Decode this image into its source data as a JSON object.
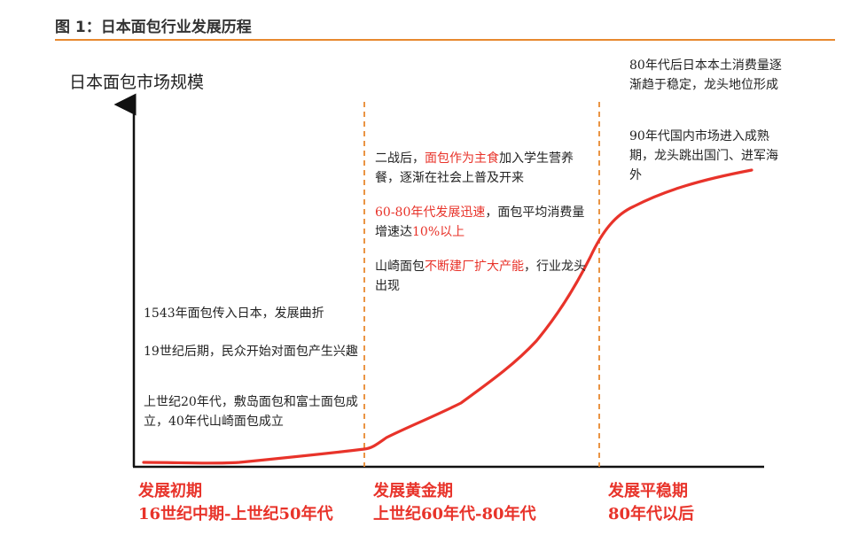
{
  "figure_title": "图 1：日本面包行业发展历程",
  "y_axis_label": "日本面包市场规模",
  "stages": [
    {
      "name": "发展初期",
      "period": "16世纪中期-上世纪50年代"
    },
    {
      "name": "发展黄金期",
      "period": "上世纪60年代-80年代"
    },
    {
      "name": "发展平稳期",
      "period": "80年代以后"
    }
  ],
  "early_notes": [
    "1543年面包传入日本，发展曲折",
    "19世纪后期，民众开始对面包产生兴趣",
    "上世纪20年代，敷岛面包和富士面包成立，40年代山崎面包成立"
  ],
  "golden_notes": {
    "n1": {
      "pre": "二战后，",
      "hl": "面包作为主食",
      "post": "加入学生营养餐，逐渐在社会上普及开来"
    },
    "n2": {
      "hl1": "60-80年代发展迅速",
      "mid": "，面包平均消费量增速达",
      "hl2": "10%以上"
    },
    "n3": {
      "pre": "山崎面包",
      "hl": "不断建厂扩大产能",
      "post": "，行业龙头出现"
    }
  },
  "stable_notes": [
    "80年代后日本本土消费量逐渐趋于稳定，龙头地位形成",
    "90年代国内市场进入成熟期，龙头跳出国门、进军海外"
  ],
  "colors": {
    "accent": "#e8332a",
    "divider": "#e8892f",
    "axis": "#111111"
  }
}
